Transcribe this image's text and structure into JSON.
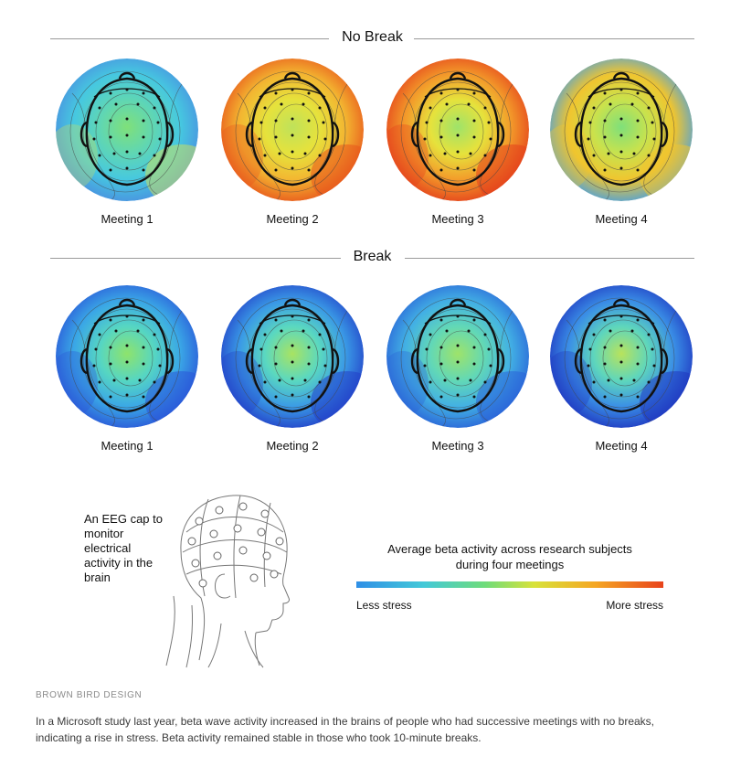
{
  "sections": [
    {
      "title": "No Break",
      "maps": [
        {
          "caption": "Meeting 1",
          "palette": [
            "#7fe07a",
            "#5fd6b4",
            "#46c8e0",
            "#4a8fe0"
          ],
          "edge": "#c8e060"
        },
        {
          "caption": "Meeting 2",
          "palette": [
            "#bfe25a",
            "#e6e23c",
            "#f3b531",
            "#e8551c"
          ],
          "edge": "#e8551c"
        },
        {
          "caption": "Meeting 3",
          "palette": [
            "#9ee36a",
            "#e6e23c",
            "#f39a2a",
            "#e4401c"
          ],
          "edge": "#e4401c"
        },
        {
          "caption": "Meeting 4",
          "palette": [
            "#7fe07a",
            "#c9e24d",
            "#f0c52f",
            "#4aa0e0"
          ],
          "edge": "#f0c52f"
        }
      ]
    },
    {
      "title": "Break",
      "maps": [
        {
          "caption": "Meeting 1",
          "palette": [
            "#8ee36c",
            "#56d6c2",
            "#3aa7e6",
            "#2a55d8"
          ],
          "edge": "#2a55d8"
        },
        {
          "caption": "Meeting 2",
          "palette": [
            "#a8e362",
            "#5ad8c0",
            "#3a9ae6",
            "#2340c8"
          ],
          "edge": "#2340c8"
        },
        {
          "caption": "Meeting 3",
          "palette": [
            "#9ee36a",
            "#62d8b6",
            "#42b0e4",
            "#2a62d8"
          ],
          "edge": "#2a62d8"
        },
        {
          "caption": "Meeting 4",
          "palette": [
            "#b8e35c",
            "#5ed6bc",
            "#3a8ee6",
            "#1f36c0"
          ],
          "edge": "#1f36c0"
        }
      ]
    }
  ],
  "eeg_caption": "An EEG cap to monitor electrical activity in the brain",
  "legend": {
    "title_line1": "Average beta activity across research subjects",
    "title_line2": "during four meetings",
    "low_label": "Less stress",
    "high_label": "More stress"
  },
  "credit": "BROWN BIRD DESIGN",
  "body_text": "In a Microsoft study last year, beta wave activity increased in the brains of people who had successive meetings with no breaks, indicating a rise in stress. Beta activity remained stable in those who took 10-minute breaks."
}
